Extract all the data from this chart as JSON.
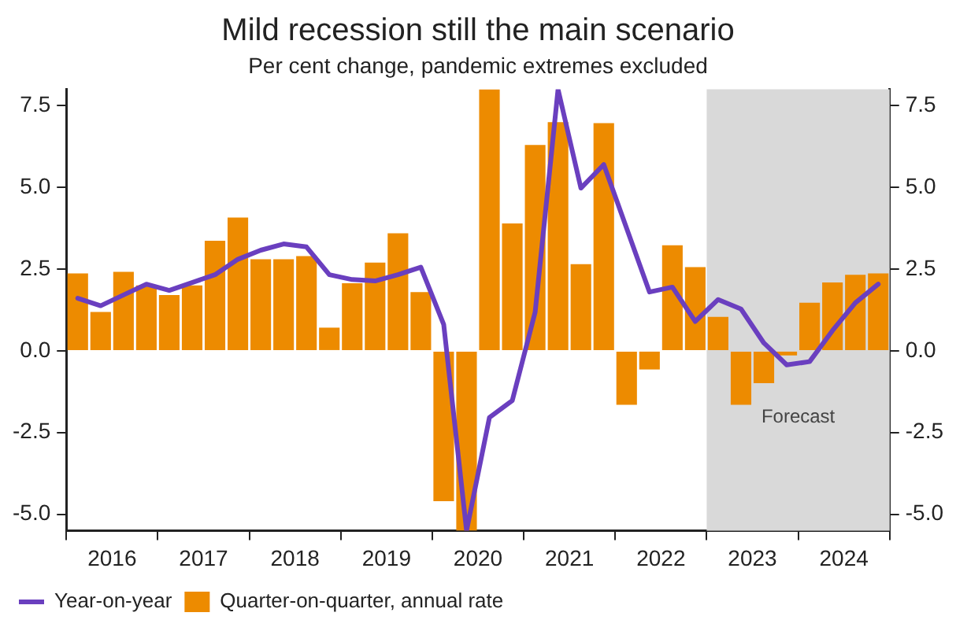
{
  "chart_data": {
    "type": "bar",
    "title": "Mild recession still the main scenario",
    "subtitle": "Per cent change, pandemic extremes excluded",
    "x": [
      2016.125,
      2016.375,
      2016.625,
      2016.875,
      2017.125,
      2017.375,
      2017.625,
      2017.875,
      2018.125,
      2018.375,
      2018.625,
      2018.875,
      2019.125,
      2019.375,
      2019.625,
      2019.875,
      2020.125,
      2020.375,
      2020.625,
      2020.875,
      2021.125,
      2021.375,
      2021.625,
      2021.875,
      2022.125,
      2022.375,
      2022.625,
      2022.875,
      2023.125,
      2023.375,
      2023.625,
      2023.875,
      2024.125,
      2024.375,
      2024.625,
      2024.875
    ],
    "series": [
      {
        "name": "Year-on-year",
        "type": "line",
        "color": "#6a3fbf",
        "values": [
          1.61,
          1.38,
          1.71,
          2.04,
          1.85,
          2.09,
          2.33,
          2.8,
          3.08,
          3.27,
          3.18,
          2.33,
          2.18,
          2.14,
          2.33,
          2.56,
          0.81,
          -5.5,
          -2.04,
          -1.52,
          1.19,
          8.0,
          4.98,
          5.7,
          3.75,
          1.8,
          1.95,
          0.9,
          1.57,
          1.28,
          0.24,
          -0.43,
          -0.33,
          0.62,
          1.47,
          2.04
        ]
      },
      {
        "name": "Quarter-on-quarter, annual rate",
        "color": "#ed8b00",
        "values": [
          2.37,
          1.19,
          2.42,
          2.0,
          1.71,
          2.0,
          3.37,
          4.08,
          2.8,
          2.8,
          2.9,
          0.71,
          2.07,
          2.7,
          3.6,
          1.8,
          -4.6,
          -5.5,
          8.0,
          3.9,
          6.3,
          7.0,
          2.65,
          6.97,
          -1.65,
          -0.57,
          3.23,
          2.56,
          1.04,
          -1.65,
          -0.99,
          -0.14,
          1.47,
          2.09,
          2.33,
          2.37
        ]
      }
    ],
    "xlim": [
      2016,
      2025
    ],
    "xticks": [
      {
        "value": 2016,
        "label": null
      },
      {
        "value": 2016.5,
        "label": "2016"
      },
      {
        "value": 2017,
        "label": null
      },
      {
        "value": 2017.5,
        "label": "2017"
      },
      {
        "value": 2018,
        "label": null
      },
      {
        "value": 2018.5,
        "label": "2018"
      },
      {
        "value": 2019,
        "label": null
      },
      {
        "value": 2019.5,
        "label": "2019"
      },
      {
        "value": 2020,
        "label": null
      },
      {
        "value": 2020.5,
        "label": "2020"
      },
      {
        "value": 2021,
        "label": null
      },
      {
        "value": 2021.5,
        "label": "2021"
      },
      {
        "value": 2022,
        "label": null
      },
      {
        "value": 2022.5,
        "label": "2022"
      },
      {
        "value": 2023,
        "label": null
      },
      {
        "value": 2023.5,
        "label": "2023"
      },
      {
        "value": 2024,
        "label": null
      },
      {
        "value": 2024.5,
        "label": "2024"
      },
      {
        "value": 2025,
        "label": null
      }
    ],
    "ylim": [
      -5.5,
      8.0
    ],
    "yticks": [
      {
        "value": -5,
        "label": "-5.0"
      },
      {
        "value": -2.5,
        "label": "-2.5"
      },
      {
        "value": 0,
        "label": "0.0"
      },
      {
        "value": 2.5,
        "label": "2.5"
      },
      {
        "value": 5,
        "label": "5.0"
      },
      {
        "value": 7.5,
        "label": "7.5"
      }
    ],
    "y2lim": [
      -5.5,
      8.0
    ],
    "y2ticks": [
      {
        "value": -5,
        "label": "-5.0"
      },
      {
        "value": -2.5,
        "label": "-2.5"
      },
      {
        "value": 0,
        "label": "0.0"
      },
      {
        "value": 2.5,
        "label": "2.5"
      },
      {
        "value": 5,
        "label": "5.0"
      },
      {
        "value": 7.5,
        "label": "7.5"
      }
    ],
    "bands": [
      {
        "axis": "x",
        "from": 2023,
        "to": 2025,
        "label": "Forecast",
        "color": "#d9d9d9"
      }
    ],
    "grid": false,
    "legend": "bottom left"
  }
}
